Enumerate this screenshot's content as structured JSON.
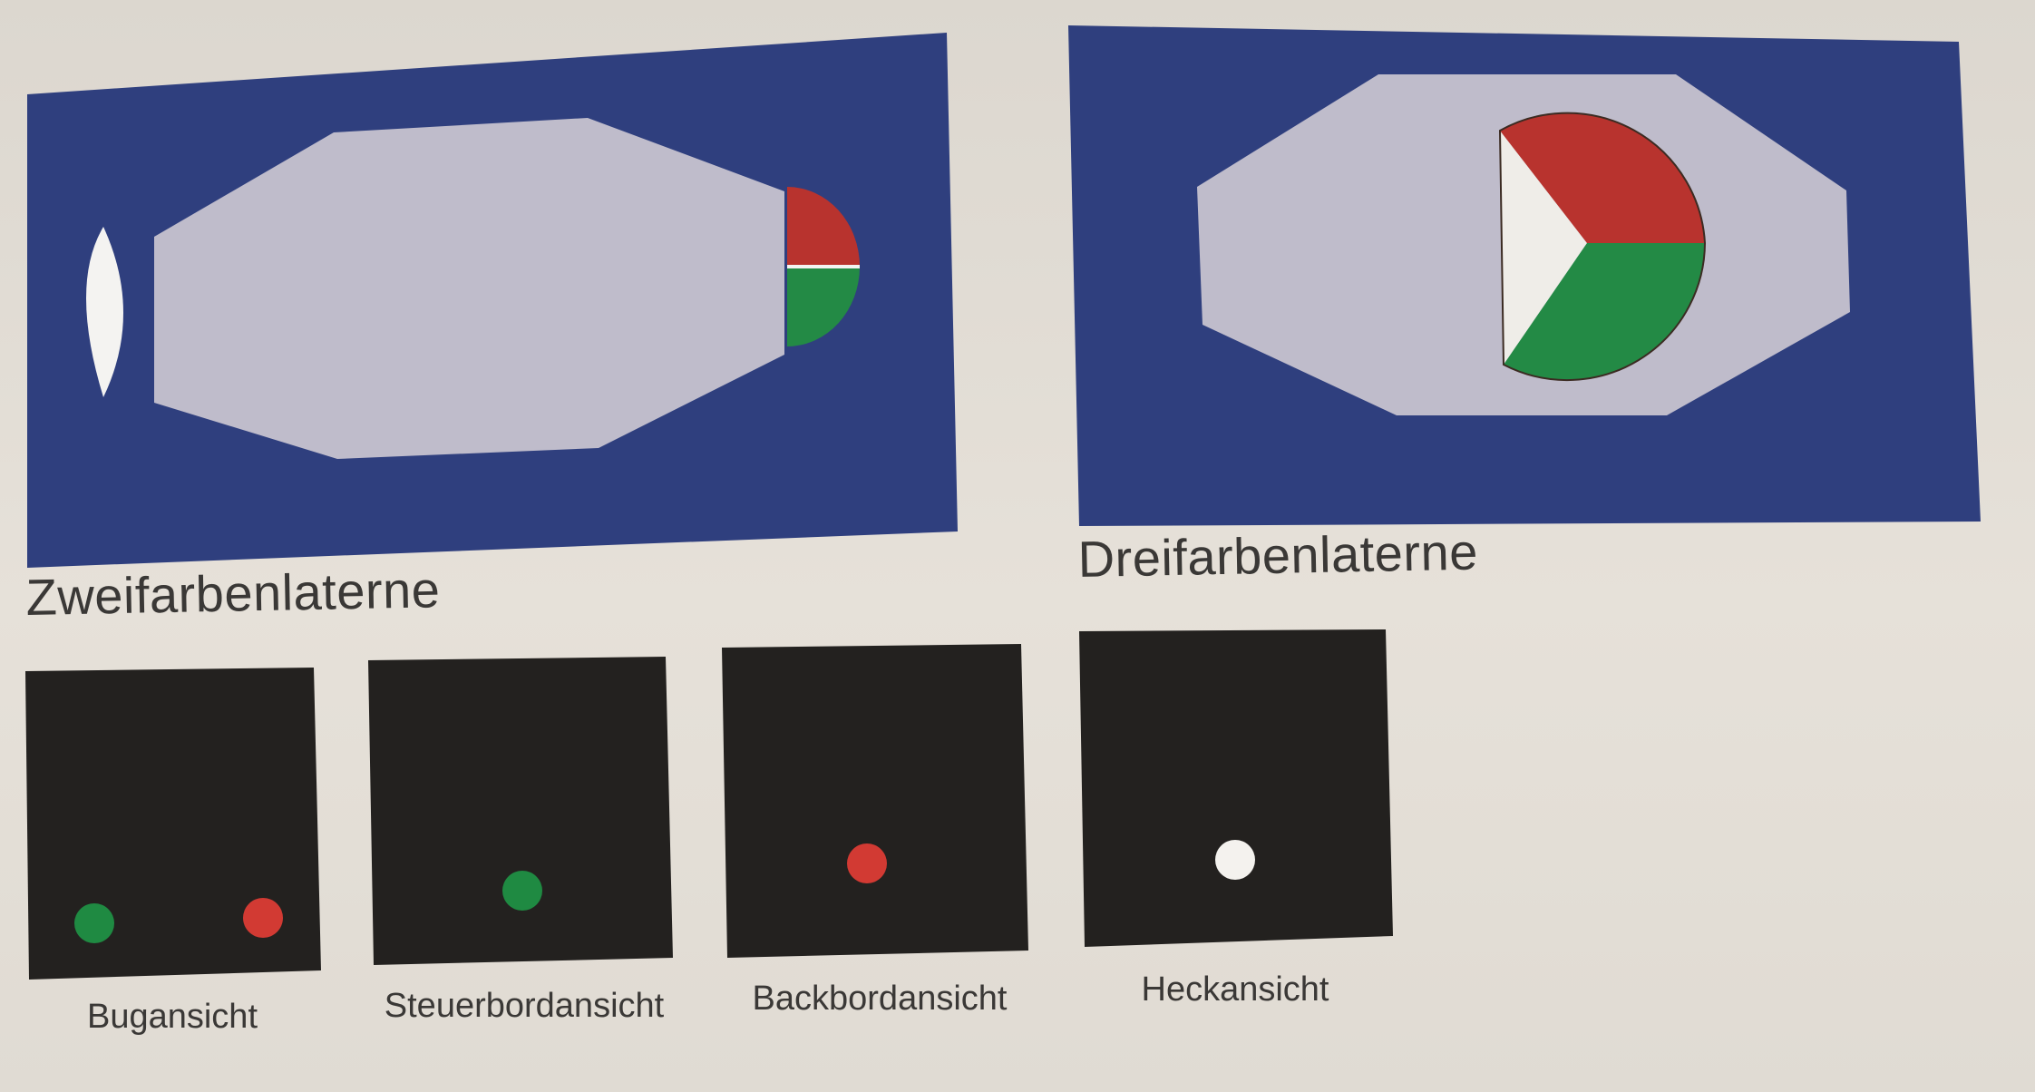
{
  "two_color_lantern": {
    "caption": "Zweifarbenlaterne",
    "colors": {
      "background": "#2f3f7e",
      "hull": "#bfbccb",
      "red": "#b8332e",
      "green": "#238a45",
      "white": "#f4f3f1"
    }
  },
  "three_color_lantern": {
    "caption": "Dreifarbenlaterne",
    "colors": {
      "background": "#2f3f7e",
      "hull": "#bfbccb",
      "red": "#b8332e",
      "green": "#238a45",
      "white": "#efede8"
    }
  },
  "views": [
    {
      "caption": "Bugansicht",
      "lights": [
        "green",
        "red"
      ]
    },
    {
      "caption": "Steuerbordansicht",
      "lights": [
        "green"
      ]
    },
    {
      "caption": "Backbordansicht",
      "lights": [
        "red"
      ]
    },
    {
      "caption": "Heckansicht",
      "lights": [
        "white"
      ]
    }
  ],
  "light_colors": {
    "red": "#d23a33",
    "green": "#1f8a42",
    "white": "#f4f2ee",
    "box": "#23211f"
  }
}
